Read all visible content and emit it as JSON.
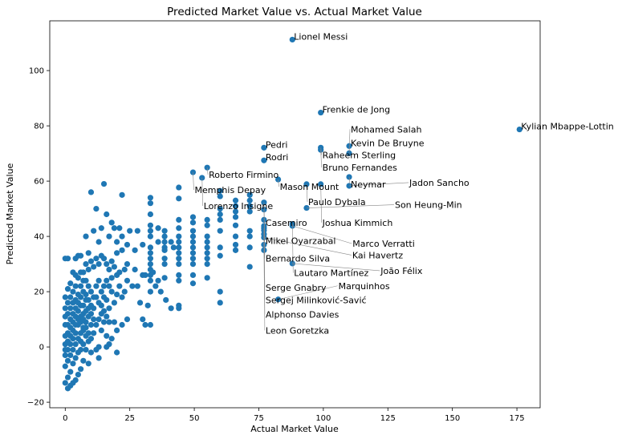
{
  "chart_data": {
    "type": "scatter",
    "title": "Predicted Market Value vs. Actual Market Value",
    "xlabel": "Actual Market Value",
    "ylabel": "Predicted Market Value",
    "xlim": [
      -6,
      184
    ],
    "ylim": [
      -22,
      118
    ],
    "xticks": [
      0,
      25,
      50,
      75,
      100,
      125,
      150,
      175
    ],
    "yticks": [
      -20,
      0,
      20,
      40,
      60,
      80,
      100
    ],
    "grid": false,
    "color": "#1f77b4",
    "labeled_points": [
      {
        "name": "Lionel Messi",
        "x": 88,
        "y": 111.2
      },
      {
        "name": "Frenkie de Jong",
        "x": 99,
        "y": 84.8
      },
      {
        "name": "Kylian Mbappe-Lottin",
        "x": 176,
        "y": 78.7
      },
      {
        "name": "Pedri",
        "x": 77,
        "y": 72.1
      },
      {
        "name": "Kevin De Bruyne",
        "x": 110,
        "y": 72.7
      },
      {
        "name": "Raheem Sterling",
        "x": 99,
        "y": 72.1
      },
      {
        "name": "Bruno Fernandes",
        "x": 99,
        "y": 71.3
      },
      {
        "name": "Mohamed Salah",
        "x": 110,
        "y": 70.1
      },
      {
        "name": "Rodri",
        "x": 77,
        "y": 67.5
      },
      {
        "name": "Roberto Firmino",
        "x": 55,
        "y": 64.9
      },
      {
        "name": "Memphis Depay",
        "x": 49.5,
        "y": 63.2
      },
      {
        "name": "Lorenzo Insigne",
        "x": 53,
        "y": 61.2
      },
      {
        "name": "Neymar",
        "x": 110,
        "y": 61.5
      },
      {
        "name": "Mason Mount",
        "x": 82.5,
        "y": 60.6
      },
      {
        "name": "Paulo Dybala",
        "x": 93.5,
        "y": 58.9
      },
      {
        "name": "Joshua Kimmich",
        "x": 99,
        "y": 58.9
      },
      {
        "name": "Jadon Sancho",
        "x": 110,
        "y": 58.3
      },
      {
        "name": "Mikel Oyarzabal",
        "x": 77,
        "y": 52.3
      },
      {
        "name": "Son Heung-Min",
        "x": 93.5,
        "y": 50.3
      },
      {
        "name": "Bernardo Silva",
        "x": 77,
        "y": 49.7
      },
      {
        "name": "Lautaro Martínez",
        "x": 88,
        "y": 44.5
      },
      {
        "name": "Marco Verratti",
        "x": 88,
        "y": 43.8
      },
      {
        "name": "Casemiro",
        "x": 77,
        "y": 43.8
      },
      {
        "name": "Serge Gnabry",
        "x": 77,
        "y": 43.0
      },
      {
        "name": "Sergej Milinković-Savić",
        "x": 77,
        "y": 42.2
      },
      {
        "name": "Alphonso Davies",
        "x": 77,
        "y": 40.8
      },
      {
        "name": "Kai Havertz",
        "x": 77,
        "y": 39.6
      },
      {
        "name": "Leon Goretzka",
        "x": 77,
        "y": 35.0
      },
      {
        "name": "João Félix",
        "x": 88,
        "y": 30.2
      },
      {
        "name": "Marquinhos",
        "x": 82.5,
        "y": 17.2
      }
    ],
    "points": [
      [
        33,
        54
      ],
      [
        33,
        52
      ],
      [
        33,
        48
      ],
      [
        33,
        44
      ],
      [
        33,
        42
      ],
      [
        33,
        40
      ],
      [
        33,
        36
      ],
      [
        33,
        34
      ],
      [
        33,
        32
      ],
      [
        33,
        30
      ],
      [
        33,
        28
      ],
      [
        33,
        26
      ],
      [
        33,
        24
      ],
      [
        33,
        20
      ],
      [
        38.5,
        42
      ],
      [
        38.5,
        40
      ],
      [
        38.5,
        38
      ],
      [
        38.5,
        36
      ],
      [
        38.5,
        32
      ],
      [
        38.5,
        30
      ],
      [
        38.5,
        25
      ],
      [
        38.5,
        35
      ],
      [
        44,
        57.7
      ],
      [
        44,
        53.7
      ],
      [
        44,
        46
      ],
      [
        44,
        43
      ],
      [
        44,
        40
      ],
      [
        44,
        38
      ],
      [
        44,
        36
      ],
      [
        44,
        34
      ],
      [
        44,
        32
      ],
      [
        44,
        30
      ],
      [
        44,
        26
      ],
      [
        44,
        24
      ],
      [
        44,
        15
      ],
      [
        44,
        14
      ],
      [
        49.5,
        47
      ],
      [
        49.5,
        45
      ],
      [
        49.5,
        42
      ],
      [
        49.5,
        40
      ],
      [
        49.5,
        38
      ],
      [
        49.5,
        36
      ],
      [
        49.5,
        34
      ],
      [
        49.5,
        32
      ],
      [
        49.5,
        30
      ],
      [
        49.5,
        26
      ],
      [
        49.5,
        23
      ],
      [
        55,
        46
      ],
      [
        55,
        44
      ],
      [
        55,
        40
      ],
      [
        55,
        38
      ],
      [
        55,
        36
      ],
      [
        55,
        34
      ],
      [
        55,
        32
      ],
      [
        55,
        30
      ],
      [
        55,
        25
      ],
      [
        60,
        56.5
      ],
      [
        60,
        54.5
      ],
      [
        60,
        50
      ],
      [
        60,
        48
      ],
      [
        60,
        46
      ],
      [
        60,
        42
      ],
      [
        60,
        36
      ],
      [
        60,
        33
      ],
      [
        60,
        20
      ],
      [
        60,
        16
      ],
      [
        66,
        53
      ],
      [
        66,
        51
      ],
      [
        66,
        49
      ],
      [
        66,
        47
      ],
      [
        66,
        44
      ],
      [
        66,
        40
      ],
      [
        66,
        37
      ],
      [
        66,
        35
      ],
      [
        71.5,
        55
      ],
      [
        71.5,
        53
      ],
      [
        71.5,
        51
      ],
      [
        71.5,
        49
      ],
      [
        71.5,
        42
      ],
      [
        71.5,
        40
      ],
      [
        71.5,
        36
      ],
      [
        71.5,
        29
      ],
      [
        77,
        46
      ],
      [
        77,
        37
      ],
      [
        41,
        38
      ],
      [
        42,
        36
      ],
      [
        36,
        38
      ],
      [
        36,
        43
      ],
      [
        30,
        37
      ],
      [
        28,
        42
      ],
      [
        27,
        35
      ],
      [
        25,
        42
      ],
      [
        24,
        37
      ],
      [
        22,
        35
      ],
      [
        22,
        40
      ],
      [
        21,
        43
      ],
      [
        20,
        34
      ],
      [
        20,
        38
      ],
      [
        10,
        56
      ],
      [
        15,
        59
      ],
      [
        22,
        55
      ],
      [
        12,
        50
      ],
      [
        16,
        48
      ],
      [
        18,
        45
      ],
      [
        19,
        43
      ],
      [
        14,
        43
      ],
      [
        11,
        42
      ],
      [
        13,
        38
      ],
      [
        17,
        40
      ],
      [
        8,
        40
      ],
      [
        9,
        34
      ],
      [
        5,
        33
      ],
      [
        6,
        33
      ],
      [
        4,
        32
      ],
      [
        1,
        32
      ],
      [
        0,
        32
      ],
      [
        27,
        28
      ],
      [
        30,
        26
      ],
      [
        31,
        26
      ],
      [
        28,
        22
      ],
      [
        26,
        22
      ],
      [
        29,
        16
      ],
      [
        32,
        15
      ],
      [
        34,
        27
      ],
      [
        35,
        22
      ],
      [
        37,
        20
      ],
      [
        36,
        24
      ],
      [
        39,
        17
      ],
      [
        41,
        14
      ],
      [
        33,
        8
      ],
      [
        30,
        10
      ],
      [
        31,
        8
      ],
      [
        24,
        30
      ],
      [
        23,
        28
      ],
      [
        21,
        27
      ],
      [
        20,
        26
      ],
      [
        19,
        29
      ],
      [
        18,
        31
      ],
      [
        17,
        28
      ],
      [
        16,
        30
      ],
      [
        15,
        32
      ],
      [
        14,
        33
      ],
      [
        13,
        30
      ],
      [
        12,
        32
      ],
      [
        11,
        29
      ],
      [
        10,
        31
      ],
      [
        9,
        28
      ],
      [
        8,
        30
      ],
      [
        7,
        27
      ],
      [
        24,
        24
      ],
      [
        23,
        20
      ],
      [
        22,
        18
      ],
      [
        21,
        22
      ],
      [
        20,
        19
      ],
      [
        19,
        16
      ],
      [
        18,
        20
      ],
      [
        17,
        14
      ],
      [
        16,
        17
      ],
      [
        15,
        22
      ],
      [
        14,
        12
      ],
      [
        13,
        16
      ],
      [
        12,
        18
      ],
      [
        11,
        14
      ],
      [
        10,
        20
      ],
      [
        9,
        22
      ],
      [
        8,
        17
      ],
      [
        24,
        10
      ],
      [
        22,
        8
      ],
      [
        20,
        6
      ],
      [
        19,
        9
      ],
      [
        18,
        3
      ],
      [
        17,
        1
      ],
      [
        16,
        4
      ],
      [
        15,
        9
      ],
      [
        14,
        6
      ],
      [
        13,
        0
      ],
      [
        12,
        -1
      ],
      [
        11,
        5
      ],
      [
        10,
        8
      ],
      [
        9,
        2
      ],
      [
        8,
        4
      ],
      [
        7,
        6
      ],
      [
        20,
        -2
      ],
      [
        16,
        0
      ],
      [
        13,
        -4
      ],
      [
        10,
        -2
      ],
      [
        9,
        -6
      ],
      [
        7,
        -5
      ],
      [
        6,
        -8
      ],
      [
        5,
        -10
      ],
      [
        4,
        -12
      ],
      [
        3,
        -13
      ],
      [
        2,
        -14
      ],
      [
        1,
        -15
      ],
      [
        0,
        -13
      ],
      [
        1,
        -11
      ],
      [
        2,
        -9
      ],
      [
        0,
        -7
      ],
      [
        7,
        24
      ],
      [
        6,
        22
      ],
      [
        5,
        19
      ],
      [
        4,
        17
      ],
      [
        3,
        16
      ],
      [
        2,
        14
      ],
      [
        1,
        12
      ],
      [
        0,
        11
      ],
      [
        6,
        15
      ],
      [
        5,
        13
      ],
      [
        4,
        11
      ],
      [
        3,
        9
      ],
      [
        2,
        7
      ],
      [
        1,
        5
      ],
      [
        0,
        4
      ],
      [
        5,
        8
      ],
      [
        4,
        5
      ],
      [
        3,
        3
      ],
      [
        2,
        1
      ],
      [
        1,
        -1
      ],
      [
        0,
        -3
      ],
      [
        6,
        11
      ],
      [
        7,
        12
      ],
      [
        8,
        13
      ],
      [
        9,
        11
      ],
      [
        8,
        9
      ],
      [
        7,
        7
      ],
      [
        6,
        5
      ],
      [
        5,
        3
      ],
      [
        4,
        1
      ],
      [
        3,
        -1
      ],
      [
        2,
        -3
      ],
      [
        1,
        -5
      ],
      [
        3,
        -6
      ],
      [
        4,
        -4
      ],
      [
        5,
        -2
      ],
      [
        6,
        -1
      ],
      [
        7,
        1
      ],
      [
        8,
        -1
      ],
      [
        6,
        2
      ],
      [
        2,
        18
      ],
      [
        3,
        20
      ],
      [
        4,
        22
      ],
      [
        5,
        25
      ],
      [
        6,
        27
      ],
      [
        7,
        20
      ],
      [
        8,
        24
      ],
      [
        9,
        17
      ],
      [
        10,
        15
      ],
      [
        11,
        18
      ],
      [
        12,
        22
      ],
      [
        13,
        24
      ],
      [
        14,
        20
      ],
      [
        15,
        18
      ],
      [
        16,
        24
      ],
      [
        17,
        22
      ],
      [
        18,
        25
      ],
      [
        1,
        8
      ],
      [
        2,
        10
      ],
      [
        3,
        12
      ],
      [
        4,
        14
      ],
      [
        5,
        16
      ],
      [
        6,
        18
      ],
      [
        7,
        15
      ],
      [
        8,
        19
      ],
      [
        9,
        14
      ],
      [
        10,
        12
      ],
      [
        11,
        10
      ],
      [
        12,
        8
      ],
      [
        13,
        10
      ],
      [
        14,
        15
      ],
      [
        15,
        13
      ],
      [
        16,
        11
      ],
      [
        17,
        9
      ],
      [
        3,
        27
      ],
      [
        4,
        26
      ],
      [
        2,
        23
      ],
      [
        1,
        21
      ],
      [
        0,
        18
      ],
      [
        1,
        16
      ],
      [
        0,
        14
      ],
      [
        0,
        8
      ],
      [
        0,
        1
      ],
      [
        0,
        -1
      ],
      [
        1,
        2
      ],
      [
        2,
        4
      ],
      [
        3,
        6
      ],
      [
        4,
        8
      ],
      [
        5,
        10
      ],
      [
        6,
        9
      ],
      [
        7,
        10
      ],
      [
        8,
        7
      ],
      [
        9,
        5
      ],
      [
        10,
        3
      ]
    ]
  }
}
